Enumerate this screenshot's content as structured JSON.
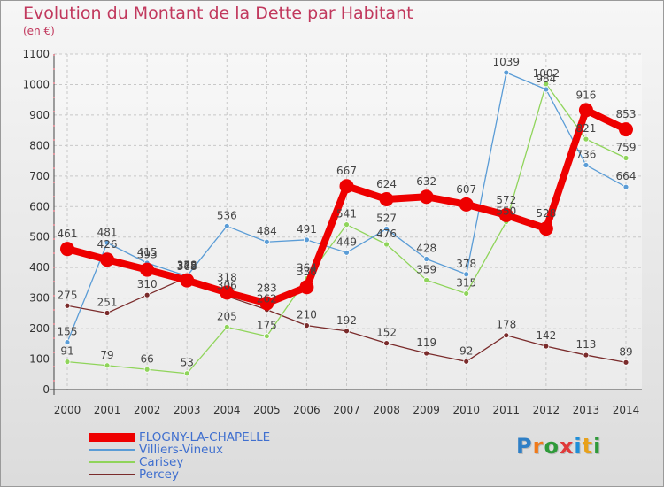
{
  "title": "Evolution du Montant de la Dette par Habitant",
  "unit": "(en €)",
  "logo": {
    "text": "Proxiti",
    "letter_colors": [
      "#2f7fc6",
      "#f07a1a",
      "#2f9a3a",
      "#e03a3a",
      "#1e8ed8",
      "#e8a11b",
      "#2f9a3a"
    ]
  },
  "chart_data": {
    "type": "line",
    "x": [
      "2000",
      "2001",
      "2002",
      "2003",
      "2004",
      "2005",
      "2006",
      "2007",
      "2008",
      "2009",
      "2010",
      "2011",
      "2012",
      "2013",
      "2014"
    ],
    "yticks": [
      "0",
      "100",
      "200",
      "300",
      "400",
      "500",
      "600",
      "700",
      "800",
      "900",
      "1000",
      "1100"
    ],
    "ylim": [
      0,
      1100
    ],
    "grid": true,
    "legend_position": "bottom-left",
    "series": [
      {
        "name": "FLOGNY-LA-CHAPELLE",
        "color": "#ee0000",
        "values": [
          461,
          426,
          393,
          358,
          318,
          283,
          336,
          667,
          624,
          632,
          607,
          572,
          528,
          916,
          853
        ],
        "labels": [
          "461",
          "426",
          "393",
          "358",
          "318",
          "283",
          "336",
          "667",
          "624",
          "632",
          "607",
          "572",
          "528",
          "916",
          "853"
        ]
      },
      {
        "name": "Villiers-Vineux",
        "color": "#5a9cd6",
        "values": [
          155,
          481,
          415,
          372,
          536,
          484,
          491,
          449,
          527,
          428,
          378,
          1039,
          984,
          736,
          664
        ],
        "labels": [
          "155",
          "481",
          "415",
          "372",
          "536",
          "484",
          "491",
          "449",
          "527",
          "428",
          "378",
          "1039",
          "984",
          "736",
          "664"
        ]
      },
      {
        "name": "Carisey",
        "color": "#8fd45a",
        "values": [
          91,
          79,
          66,
          53,
          205,
          175,
          364,
          541,
          476,
          359,
          315,
          550,
          1002,
          821,
          759
        ],
        "labels": [
          "91",
          "79",
          "66",
          "53",
          "205",
          "175",
          "364",
          "541",
          "476",
          "359",
          "315",
          "550",
          "1002",
          "821",
          "759"
        ]
      },
      {
        "name": "Percey",
        "color": "#7a2b2b",
        "values": [
          275,
          251,
          310,
          368,
          306,
          262,
          210,
          192,
          152,
          119,
          92,
          178,
          142,
          113,
          89
        ],
        "labels": [
          "275",
          "251",
          "310",
          "368",
          "306",
          "262",
          "210",
          "192",
          "152",
          "119",
          "92",
          "178",
          "142",
          "113",
          "89"
        ]
      }
    ]
  }
}
